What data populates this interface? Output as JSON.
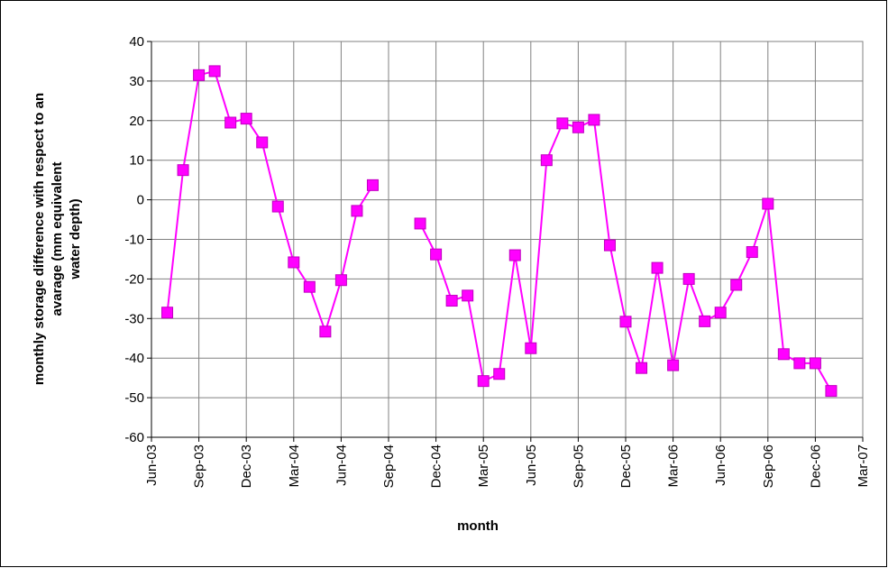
{
  "chart_data": {
    "type": "line",
    "xlabel": "month",
    "ylabel": [
      "monthly storage difference with respect to an",
      "avarage (mm equivalent",
      "water depth)"
    ],
    "x": [
      "2003-07",
      "2003-08",
      "2003-09",
      "2003-10",
      "2003-11",
      "2003-12",
      "2004-01",
      "2004-02",
      "2004-03",
      "2004-04",
      "2004-05",
      "2004-06",
      "2004-07",
      "2004-08",
      "2004-09",
      "2004-10",
      "2004-11",
      "2004-12",
      "2005-01",
      "2005-02",
      "2005-03",
      "2005-04",
      "2005-05",
      "2005-06",
      "2005-07",
      "2005-08",
      "2005-09",
      "2005-10",
      "2005-11",
      "2005-12",
      "2006-01",
      "2006-02",
      "2006-03",
      "2006-04",
      "2006-05",
      "2006-06",
      "2006-07",
      "2006-08",
      "2006-09",
      "2006-10",
      "2006-11",
      "2006-12",
      "2007-01"
    ],
    "series": [
      {
        "color": "#ff00ff",
        "values": [
          -28.5,
          7.5,
          31.5,
          32.5,
          19.5,
          20.5,
          14.5,
          -1.7,
          -15.8,
          -22,
          -33.3,
          -20.3,
          -2.8,
          3.7,
          null,
          null,
          -6,
          -13.8,
          -25.5,
          -24.2,
          -45.8,
          -44,
          -14,
          -37.5,
          10,
          19.3,
          18.3,
          20.2,
          -11.5,
          -30.8,
          -42.5,
          -17.2,
          -41.8,
          -20,
          -30.7,
          -28.5,
          -21.5,
          -13.2,
          -1,
          -39,
          -41.3,
          -41.3,
          -48.3
        ]
      }
    ],
    "xlim": [
      "2003-06",
      "2007-03"
    ],
    "xticks": [
      {
        "value": "2003-06",
        "label": "Jun-03"
      },
      {
        "value": "2003-09",
        "label": "Sep-03"
      },
      {
        "value": "2003-12",
        "label": "Dec-03"
      },
      {
        "value": "2004-03",
        "label": "Mar-04"
      },
      {
        "value": "2004-06",
        "label": "Jun-04"
      },
      {
        "value": "2004-09",
        "label": "Sep-04"
      },
      {
        "value": "2004-12",
        "label": "Dec-04"
      },
      {
        "value": "2005-03",
        "label": "Mar-05"
      },
      {
        "value": "2005-06",
        "label": "Jun-05"
      },
      {
        "value": "2005-09",
        "label": "Sep-05"
      },
      {
        "value": "2005-12",
        "label": "Dec-05"
      },
      {
        "value": "2006-03",
        "label": "Mar-06"
      },
      {
        "value": "2006-06",
        "label": "Jun-06"
      },
      {
        "value": "2006-09",
        "label": "Sep-06"
      },
      {
        "value": "2006-12",
        "label": "Dec-06"
      },
      {
        "value": "2007-03",
        "label": "Mar-07"
      }
    ],
    "ylim": [
      -60,
      40
    ],
    "yticks": [
      -60,
      -50,
      -40,
      -30,
      -20,
      -10,
      0,
      10,
      20,
      30,
      40
    ],
    "grid": true
  }
}
